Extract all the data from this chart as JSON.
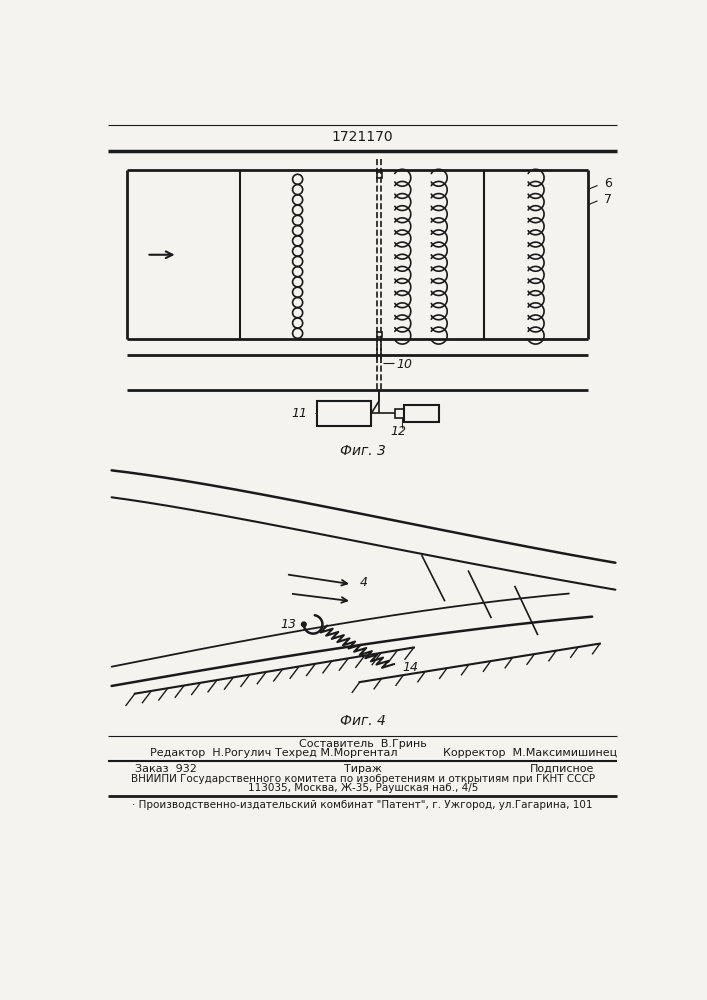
{
  "title": "1721170",
  "fig3_label": "Фиг. 3",
  "fig4_label": "Фиг. 4",
  "footer_line1": "Составитель  В.Гринь",
  "footer_editor": "Редактор  Н.Рогулич",
  "footer_techred": "Техред М.Моргентал",
  "footer_corrector": "Корректор  М.Максимишинец",
  "footer_zakaz": "Заказ  932",
  "footer_tirazh": "Тираж",
  "footer_podpisnoe": "Подписное",
  "footer_vniip1": "ВНИИПИ Государственного комитета по изобретениям и открытиям при ГКНТ СССР",
  "footer_vniip2": "113035, Москва, Ж-35, Раушская наб., 4/5",
  "footer_patent": "· Производственно-издательский комбинат \"Патент\", г. Ужгород, ул.Гагарина, 101",
  "bg_color": "#f5f3ef",
  "line_color": "#1a1a1a"
}
